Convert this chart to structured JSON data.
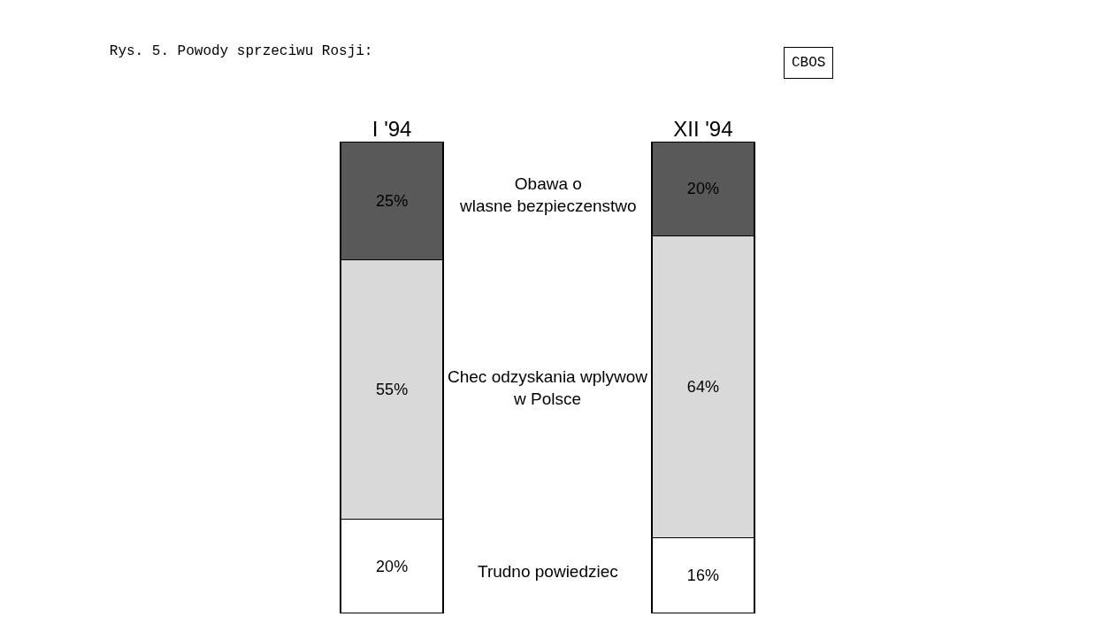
{
  "chart_data": {
    "type": "bar",
    "title": "Rys. 5. Powody sprzeciwu Rosji:",
    "categories": [
      "I '94",
      "XII '94"
    ],
    "stacked": true,
    "ylim": [
      0,
      100
    ],
    "tick_labels": "x",
    "legend": false,
    "grid": false,
    "series": [
      {
        "name": "Trudno powiedziec",
        "color": "#ffffff",
        "values": [
          20,
          16
        ],
        "value_labels": [
          "20%",
          "16%"
        ]
      },
      {
        "name": "Chec odzyskania wplywow w Polsce",
        "color": "#d9d9d9",
        "values": [
          55,
          64
        ],
        "value_labels": [
          "55%",
          "64%"
        ]
      },
      {
        "name": "Obawa o wlasne bezpieczenstwo",
        "color": "#595959",
        "values": [
          25,
          20
        ],
        "value_labels": [
          "25%",
          "20%"
        ]
      }
    ],
    "annotations": [
      "CBOS"
    ]
  }
}
